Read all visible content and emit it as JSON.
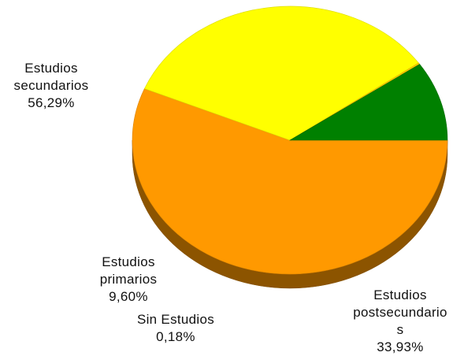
{
  "chart_data": {
    "type": "pie",
    "title": "",
    "three_d": true,
    "legend": "none",
    "slices": [
      {
        "label": "Estudios secundarios",
        "value": 56.29,
        "text": "56,29%",
        "color": "#FF9900"
      },
      {
        "label": "Estudios postsecundarios",
        "value": 33.93,
        "text": "33,93%",
        "color": "#FFFF00"
      },
      {
        "label": "Sin Estudios",
        "value": 0.18,
        "text": "0,18%",
        "color": "#FFCC00"
      },
      {
        "label": "Estudios primarios",
        "value": 9.6,
        "text": "9,60%",
        "color": "#008000"
      }
    ]
  },
  "labels": {
    "secundarios": {
      "line1": "Estudios",
      "line2": "secundarios",
      "pct": "56,29%"
    },
    "primarios": {
      "line1": "Estudios",
      "line2": "primarios",
      "pct": "9,60%"
    },
    "sin": {
      "line1": "Sin Estudios",
      "pct": "0,18%"
    },
    "post": {
      "line1": "Estudios",
      "line2": "postsecundario",
      "line3": "s",
      "pct": "33,93%"
    }
  }
}
